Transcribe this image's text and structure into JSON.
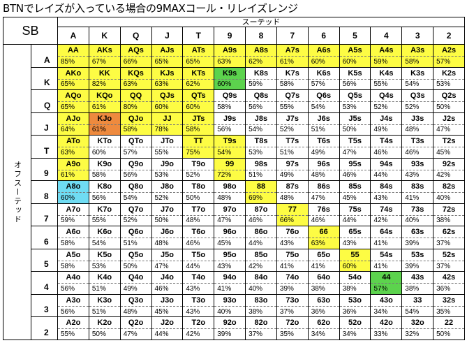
{
  "title": "BTNでレイズが入っている場合の9MAXコール・リレイズレンジ",
  "corner_label": "SB",
  "suited_label": "スーテッド",
  "offsuit_label": "オフスーテッド",
  "colors": {
    "y": "#fdfc44",
    "g": "#5cd34d",
    "o": "#ee8a3e",
    "c": "#6fdcf3"
  },
  "ranks": [
    "A",
    "K",
    "Q",
    "J",
    "T",
    "9",
    "8",
    "7",
    "6",
    "5",
    "4",
    "3",
    "2"
  ],
  "rows": [
    {
      "rank": "A",
      "cells": [
        {
          "h": "AA",
          "p": "85%",
          "c": "y"
        },
        {
          "h": "AKs",
          "p": "67%",
          "c": "y"
        },
        {
          "h": "AQs",
          "p": "66%",
          "c": "y"
        },
        {
          "h": "AJs",
          "p": "65%",
          "c": "y"
        },
        {
          "h": "ATs",
          "p": "65%",
          "c": "y"
        },
        {
          "h": "A9s",
          "p": "63%",
          "c": "y"
        },
        {
          "h": "A8s",
          "p": "62%",
          "c": "y"
        },
        {
          "h": "A7s",
          "p": "61%",
          "c": "y"
        },
        {
          "h": "A6s",
          "p": "60%",
          "c": "y"
        },
        {
          "h": "A5s",
          "p": "60%",
          "c": "y"
        },
        {
          "h": "A4s",
          "p": "59%",
          "c": "y"
        },
        {
          "h": "A3s",
          "p": "58%",
          "c": "y"
        },
        {
          "h": "A2s",
          "p": "57%",
          "c": "y"
        }
      ]
    },
    {
      "rank": "K",
      "cells": [
        {
          "h": "AKo",
          "p": "65%",
          "c": "y"
        },
        {
          "h": "KK",
          "p": "82%",
          "c": "y"
        },
        {
          "h": "KQs",
          "p": "63%",
          "c": "y"
        },
        {
          "h": "KJs",
          "p": "63%",
          "c": "y"
        },
        {
          "h": "KTs",
          "p": "62%",
          "c": "y"
        },
        {
          "h": "K9s",
          "p": "60%",
          "c": "g"
        },
        {
          "h": "K8s",
          "p": "59%",
          "c": ""
        },
        {
          "h": "K7s",
          "p": "58%",
          "c": ""
        },
        {
          "h": "K6s",
          "p": "57%",
          "c": ""
        },
        {
          "h": "K5s",
          "p": "56%",
          "c": ""
        },
        {
          "h": "K4s",
          "p": "55%",
          "c": ""
        },
        {
          "h": "K3s",
          "p": "54%",
          "c": ""
        },
        {
          "h": "K2s",
          "p": "53%",
          "c": ""
        }
      ]
    },
    {
      "rank": "Q",
      "cells": [
        {
          "h": "AQo",
          "p": "65%",
          "c": "y"
        },
        {
          "h": "KQo",
          "p": "61%",
          "c": "y"
        },
        {
          "h": "QQ",
          "p": "80%",
          "c": "y"
        },
        {
          "h": "QJs",
          "p": "60%",
          "c": "y"
        },
        {
          "h": "QTs",
          "p": "60%",
          "c": "y"
        },
        {
          "h": "Q9s",
          "p": "58%",
          "c": ""
        },
        {
          "h": "Q8s",
          "p": "56%",
          "c": ""
        },
        {
          "h": "Q7s",
          "p": "55%",
          "c": ""
        },
        {
          "h": "Q6s",
          "p": "54%",
          "c": ""
        },
        {
          "h": "Q5s",
          "p": "53%",
          "c": ""
        },
        {
          "h": "Q4s",
          "p": "52%",
          "c": ""
        },
        {
          "h": "Q3s",
          "p": "52%",
          "c": ""
        },
        {
          "h": "Q2s",
          "p": "50%",
          "c": ""
        }
      ]
    },
    {
      "rank": "J",
      "cells": [
        {
          "h": "AJo",
          "p": "64%",
          "c": "y"
        },
        {
          "h": "KJo",
          "p": "61%",
          "c": "o"
        },
        {
          "h": "QJo",
          "p": "58%",
          "c": "y"
        },
        {
          "h": "JJ",
          "p": "78%",
          "c": "y"
        },
        {
          "h": "JTs",
          "p": "58%",
          "c": "y"
        },
        {
          "h": "J9s",
          "p": "56%",
          "c": ""
        },
        {
          "h": "J8s",
          "p": "54%",
          "c": ""
        },
        {
          "h": "J7s",
          "p": "52%",
          "c": ""
        },
        {
          "h": "J6s",
          "p": "51%",
          "c": ""
        },
        {
          "h": "J5s",
          "p": "50%",
          "c": ""
        },
        {
          "h": "J4s",
          "p": "49%",
          "c": ""
        },
        {
          "h": "J3s",
          "p": "48%",
          "c": ""
        },
        {
          "h": "J2s",
          "p": "47%",
          "c": ""
        }
      ]
    },
    {
      "rank": "T",
      "cells": [
        {
          "h": "ATo",
          "p": "63%",
          "c": "y"
        },
        {
          "h": "KTo",
          "p": "60%",
          "c": ""
        },
        {
          "h": "QTo",
          "p": "57%",
          "c": ""
        },
        {
          "h": "JTo",
          "p": "55%",
          "c": ""
        },
        {
          "h": "TT",
          "p": "75%",
          "c": "y"
        },
        {
          "h": "T9s",
          "p": "54%",
          "c": "y"
        },
        {
          "h": "T8s",
          "p": "53%",
          "c": ""
        },
        {
          "h": "T7s",
          "p": "51%",
          "c": ""
        },
        {
          "h": "T6s",
          "p": "49%",
          "c": ""
        },
        {
          "h": "T5s",
          "p": "47%",
          "c": ""
        },
        {
          "h": "T4s",
          "p": "46%",
          "c": ""
        },
        {
          "h": "T3s",
          "p": "46%",
          "c": ""
        },
        {
          "h": "T2s",
          "p": "45%",
          "c": ""
        }
      ]
    },
    {
      "rank": "9",
      "cells": [
        {
          "h": "A9o",
          "p": "61%",
          "c": "y"
        },
        {
          "h": "K9o",
          "p": "58%",
          "c": ""
        },
        {
          "h": "Q9o",
          "p": "56%",
          "c": ""
        },
        {
          "h": "J9o",
          "p": "53%",
          "c": ""
        },
        {
          "h": "T9o",
          "p": "52%",
          "c": ""
        },
        {
          "h": "99",
          "p": "72%",
          "c": "y"
        },
        {
          "h": "98s",
          "p": "51%",
          "c": ""
        },
        {
          "h": "97s",
          "p": "49%",
          "c": ""
        },
        {
          "h": "96s",
          "p": "48%",
          "c": ""
        },
        {
          "h": "95s",
          "p": "46%",
          "c": ""
        },
        {
          "h": "94s",
          "p": "44%",
          "c": ""
        },
        {
          "h": "93s",
          "p": "43%",
          "c": ""
        },
        {
          "h": "92s",
          "p": "42%",
          "c": ""
        }
      ]
    },
    {
      "rank": "8",
      "cells": [
        {
          "h": "A8o",
          "p": "60%",
          "c": "c"
        },
        {
          "h": "K8o",
          "p": "56%",
          "c": ""
        },
        {
          "h": "Q8o",
          "p": "54%",
          "c": ""
        },
        {
          "h": "J8o",
          "p": "52%",
          "c": ""
        },
        {
          "h": "T8o",
          "p": "50%",
          "c": ""
        },
        {
          "h": "98o",
          "p": "48%",
          "c": ""
        },
        {
          "h": "88",
          "p": "69%",
          "c": "y"
        },
        {
          "h": "87s",
          "p": "48%",
          "c": ""
        },
        {
          "h": "86s",
          "p": "47%",
          "c": ""
        },
        {
          "h": "85s",
          "p": "45%",
          "c": ""
        },
        {
          "h": "84s",
          "p": "43%",
          "c": ""
        },
        {
          "h": "83s",
          "p": "41%",
          "c": ""
        },
        {
          "h": "82s",
          "p": "40%",
          "c": ""
        }
      ]
    },
    {
      "rank": "7",
      "cells": [
        {
          "h": "A7o",
          "p": "59%",
          "c": ""
        },
        {
          "h": "K7o",
          "p": "55%",
          "c": ""
        },
        {
          "h": "Q7o",
          "p": "52%",
          "c": ""
        },
        {
          "h": "J7o",
          "p": "50%",
          "c": ""
        },
        {
          "h": "T7o",
          "p": "48%",
          "c": ""
        },
        {
          "h": "97o",
          "p": "47%",
          "c": ""
        },
        {
          "h": "87o",
          "p": "46%",
          "c": ""
        },
        {
          "h": "77",
          "p": "66%",
          "c": "y"
        },
        {
          "h": "76s",
          "p": "46%",
          "c": ""
        },
        {
          "h": "75s",
          "p": "44%",
          "c": ""
        },
        {
          "h": "74s",
          "p": "42%",
          "c": ""
        },
        {
          "h": "73s",
          "p": "40%",
          "c": ""
        },
        {
          "h": "72s",
          "p": "38%",
          "c": ""
        }
      ]
    },
    {
      "rank": "6",
      "cells": [
        {
          "h": "A6o",
          "p": "58%",
          "c": ""
        },
        {
          "h": "K6o",
          "p": "54%",
          "c": ""
        },
        {
          "h": "Q6o",
          "p": "51%",
          "c": ""
        },
        {
          "h": "J6o",
          "p": "48%",
          "c": ""
        },
        {
          "h": "T6o",
          "p": "46%",
          "c": ""
        },
        {
          "h": "96o",
          "p": "45%",
          "c": ""
        },
        {
          "h": "86o",
          "p": "44%",
          "c": ""
        },
        {
          "h": "76o",
          "p": "43%",
          "c": ""
        },
        {
          "h": "66",
          "p": "63%",
          "c": "y"
        },
        {
          "h": "65s",
          "p": "43%",
          "c": ""
        },
        {
          "h": "64s",
          "p": "41%",
          "c": ""
        },
        {
          "h": "63s",
          "p": "39%",
          "c": ""
        },
        {
          "h": "62s",
          "p": "37%",
          "c": ""
        }
      ]
    },
    {
      "rank": "5",
      "cells": [
        {
          "h": "A5o",
          "p": "58%",
          "c": ""
        },
        {
          "h": "K5o",
          "p": "53%",
          "c": ""
        },
        {
          "h": "Q5o",
          "p": "50%",
          "c": ""
        },
        {
          "h": "J5o",
          "p": "47%",
          "c": ""
        },
        {
          "h": "T5o",
          "p": "44%",
          "c": ""
        },
        {
          "h": "95o",
          "p": "43%",
          "c": ""
        },
        {
          "h": "85o",
          "p": "42%",
          "c": ""
        },
        {
          "h": "75o",
          "p": "41%",
          "c": ""
        },
        {
          "h": "65o",
          "p": "41%",
          "c": ""
        },
        {
          "h": "55",
          "p": "60%",
          "c": "y"
        },
        {
          "h": "54s",
          "p": "41%",
          "c": ""
        },
        {
          "h": "53s",
          "p": "39%",
          "c": ""
        },
        {
          "h": "52s",
          "p": "37%",
          "c": ""
        }
      ]
    },
    {
      "rank": "4",
      "cells": [
        {
          "h": "A4o",
          "p": "56%",
          "c": ""
        },
        {
          "h": "K4o",
          "p": "51%",
          "c": ""
        },
        {
          "h": "Q4o",
          "p": "49%",
          "c": ""
        },
        {
          "h": "J4o",
          "p": "46%",
          "c": ""
        },
        {
          "h": "T4o",
          "p": "43%",
          "c": ""
        },
        {
          "h": "94o",
          "p": "41%",
          "c": ""
        },
        {
          "h": "84o",
          "p": "40%",
          "c": ""
        },
        {
          "h": "74o",
          "p": "39%",
          "c": ""
        },
        {
          "h": "64o",
          "p": "38%",
          "c": ""
        },
        {
          "h": "54o",
          "p": "38%",
          "c": ""
        },
        {
          "h": "44",
          "p": "57%",
          "c": "g"
        },
        {
          "h": "43s",
          "p": "38%",
          "c": ""
        },
        {
          "h": "42s",
          "p": "36%",
          "c": ""
        }
      ]
    },
    {
      "rank": "3",
      "cells": [
        {
          "h": "A3o",
          "p": "56%",
          "c": ""
        },
        {
          "h": "K3o",
          "p": "51%",
          "c": ""
        },
        {
          "h": "Q3o",
          "p": "48%",
          "c": ""
        },
        {
          "h": "J3o",
          "p": "45%",
          "c": ""
        },
        {
          "h": "T3o",
          "p": "43%",
          "c": ""
        },
        {
          "h": "93o",
          "p": "40%",
          "c": ""
        },
        {
          "h": "83o",
          "p": "38%",
          "c": ""
        },
        {
          "h": "73o",
          "p": "37%",
          "c": ""
        },
        {
          "h": "63o",
          "p": "36%",
          "c": ""
        },
        {
          "h": "53o",
          "p": "36%",
          "c": ""
        },
        {
          "h": "43o",
          "p": "34%",
          "c": ""
        },
        {
          "h": "33",
          "p": "54%",
          "c": ""
        },
        {
          "h": "32s",
          "p": "35%",
          "c": ""
        }
      ]
    },
    {
      "rank": "2",
      "cells": [
        {
          "h": "A2o",
          "p": "55%",
          "c": ""
        },
        {
          "h": "K2o",
          "p": "50%",
          "c": ""
        },
        {
          "h": "Q2o",
          "p": "47%",
          "c": ""
        },
        {
          "h": "J2o",
          "p": "44%",
          "c": ""
        },
        {
          "h": "T2o",
          "p": "42%",
          "c": ""
        },
        {
          "h": "92o",
          "p": "39%",
          "c": ""
        },
        {
          "h": "82o",
          "p": "37%",
          "c": ""
        },
        {
          "h": "72o",
          "p": "35%",
          "c": ""
        },
        {
          "h": "62o",
          "p": "34%",
          "c": ""
        },
        {
          "h": "52o",
          "p": "34%",
          "c": ""
        },
        {
          "h": "42o",
          "p": "33%",
          "c": ""
        },
        {
          "h": "32o",
          "p": "32%",
          "c": ""
        },
        {
          "h": "22",
          "p": "50%",
          "c": ""
        }
      ]
    }
  ]
}
